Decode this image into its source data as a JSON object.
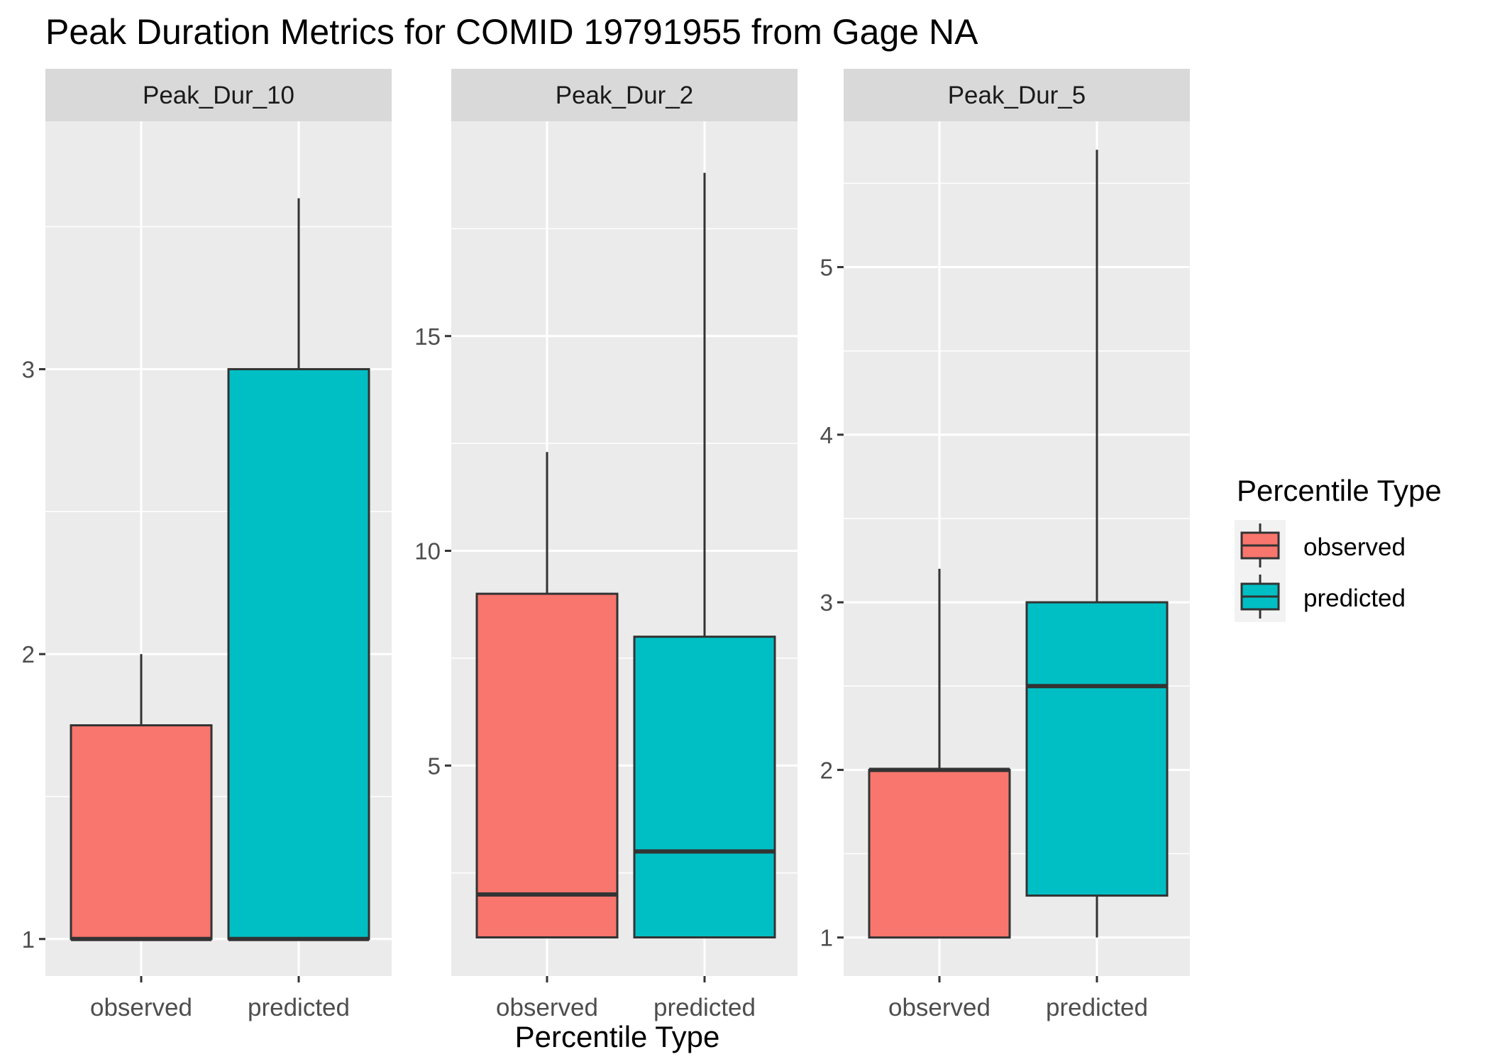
{
  "chart_data": {
    "type": "boxplot",
    "title": "Peak Duration Metrics for COMID 19791955 from Gage NA",
    "xlabel": "Percentile Type",
    "ylabel": "",
    "categories": [
      "observed",
      "predicted"
    ],
    "colors": {
      "observed": "#F8766D",
      "predicted": "#00BFC4"
    },
    "grid": true,
    "background": "#EBEBEB",
    "legend": {
      "title": "Percentile Type",
      "position": "right",
      "entries": [
        {
          "label": "observed",
          "color": "#F8766D"
        },
        {
          "label": "predicted",
          "color": "#00BFC4"
        }
      ]
    },
    "panels": [
      {
        "name": "Peak_Dur_10",
        "ylim": [
          0.87,
          3.87
        ],
        "yticks": [
          1,
          2,
          3
        ],
        "boxes": [
          {
            "category": "observed",
            "min": 1,
            "q1": 1,
            "median": 1,
            "q3": 1.75,
            "max": 2
          },
          {
            "category": "predicted",
            "min": 1,
            "q1": 1,
            "median": 1,
            "q3": 3,
            "max": 3.6
          }
        ]
      },
      {
        "name": "Peak_Dur_2",
        "ylim": [
          0.1,
          20.0
        ],
        "yticks": [
          5,
          10,
          15
        ],
        "boxes": [
          {
            "category": "observed",
            "min": 1,
            "q1": 1,
            "median": 2,
            "q3": 9,
            "max": 12.3
          },
          {
            "category": "predicted",
            "min": 1,
            "q1": 1,
            "median": 3,
            "q3": 8,
            "max": 18.8
          }
        ]
      },
      {
        "name": "Peak_Dur_5",
        "ylim": [
          0.77,
          5.87
        ],
        "yticks": [
          1,
          2,
          3,
          4,
          5
        ],
        "boxes": [
          {
            "category": "observed",
            "min": 1,
            "q1": 1,
            "median": 2,
            "q3": 2,
            "max": 3.2
          },
          {
            "category": "predicted",
            "min": 1,
            "q1": 1.25,
            "median": 2.5,
            "q3": 3,
            "max": 5.7
          }
        ]
      }
    ]
  }
}
